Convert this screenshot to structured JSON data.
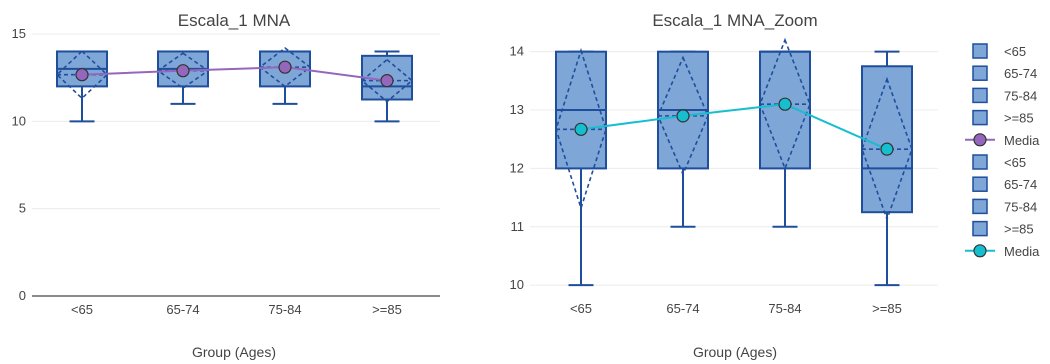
{
  "chart_data": [
    {
      "type": "box",
      "title": "Escala_1 MNA",
      "xlabel": "Group (Ages)",
      "ylabel": "",
      "ylim": [
        0,
        15
      ],
      "yticks": [
        0,
        5,
        10,
        15
      ],
      "categories": [
        "<65",
        "65-74",
        "75-84",
        ">=85"
      ],
      "box_color": "#1f4e9c",
      "box_fill": "#7ea6d6",
      "mean_line_color": "#9467bd",
      "mean_marker_color": "#9467bd",
      "boxes": [
        {
          "category": "<65",
          "min": 10,
          "q1": 12,
          "median": 13,
          "q3": 14,
          "max": 14,
          "mean": 12.67,
          "sd": 1.35
        },
        {
          "category": "65-74",
          "min": 11,
          "q1": 12,
          "median": 13,
          "q3": 14,
          "max": 14,
          "mean": 12.9,
          "sd": 1.0
        },
        {
          "category": "75-84",
          "min": 11,
          "q1": 12,
          "median": 14,
          "q3": 14,
          "max": 14,
          "mean": 13.1,
          "sd": 1.1
        },
        {
          "category": ">=85",
          "min": 10,
          "q1": 11.25,
          "median": 12,
          "q3": 13.75,
          "max": 14,
          "mean": 12.33,
          "sd": 1.2
        }
      ],
      "mean_series_name": "Media"
    },
    {
      "type": "box",
      "title": "Escala_1 MNA_Zoom",
      "xlabel": "Group (Ages)",
      "ylabel": "",
      "ylim": [
        9.9,
        14.2
      ],
      "yticks": [
        10,
        11,
        12,
        13,
        14
      ],
      "categories": [
        "<65",
        "65-74",
        "75-84",
        ">=85"
      ],
      "box_color": "#1f4e9c",
      "box_fill": "#7ea6d6",
      "mean_line_color": "#17becf",
      "mean_marker_color": "#17becf",
      "boxes": [
        {
          "category": "<65",
          "min": 10,
          "q1": 12,
          "median": 13,
          "q3": 14,
          "max": 14,
          "mean": 12.67,
          "sd": 1.35
        },
        {
          "category": "65-74",
          "min": 11,
          "q1": 12,
          "median": 13,
          "q3": 14,
          "max": 14,
          "mean": 12.9,
          "sd": 1.0
        },
        {
          "category": "75-84",
          "min": 11,
          "q1": 12,
          "median": 14,
          "q3": 14,
          "max": 14,
          "mean": 13.1,
          "sd": 1.1
        },
        {
          "category": ">=85",
          "min": 10,
          "q1": 11.25,
          "median": 12,
          "q3": 13.75,
          "max": 14,
          "mean": 12.33,
          "sd": 1.2
        }
      ],
      "mean_series_name": "Media"
    }
  ],
  "legend": {
    "placement": "right",
    "items": [
      {
        "label": "<65",
        "kind": "box"
      },
      {
        "label": "65-74",
        "kind": "box"
      },
      {
        "label": "75-84",
        "kind": "box"
      },
      {
        "label": ">=85",
        "kind": "box"
      },
      {
        "label": "Media",
        "kind": "line",
        "color": "#9467bd"
      },
      {
        "label": "<65",
        "kind": "box"
      },
      {
        "label": "65-74",
        "kind": "box"
      },
      {
        "label": "75-84",
        "kind": "box"
      },
      {
        "label": ">=85",
        "kind": "box"
      },
      {
        "label": "Media",
        "kind": "line",
        "color": "#17becf"
      }
    ]
  }
}
